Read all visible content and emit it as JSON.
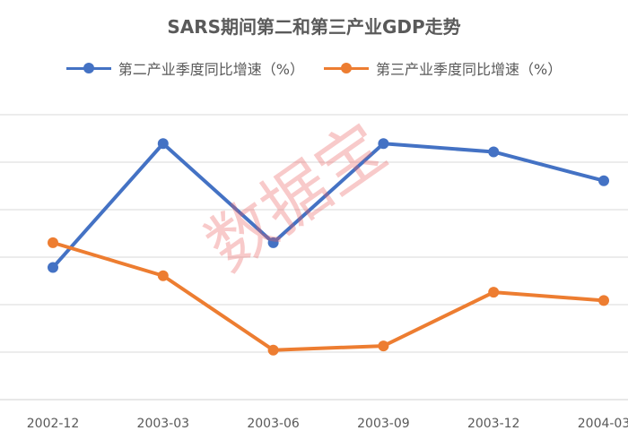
{
  "chart_data": {
    "type": "line",
    "title": "SARS期间第二和第三产业GDP走势",
    "categories": [
      "2002-12",
      "2003-03",
      "2003-06",
      "2003-09",
      "2003-12",
      "2004-03"
    ],
    "series": [
      {
        "name": "第二产业季度同比增速（%）",
        "color": "#4472C4",
        "values": [
          11.2,
          14.2,
          11.8,
          14.2,
          14.0,
          13.3
        ]
      },
      {
        "name": "第三产业季度同比增速（%）",
        "color": "#ED7D31",
        "values": [
          11.8,
          11.0,
          9.2,
          9.3,
          10.6,
          10.4
        ]
      }
    ],
    "ylim": [
      8,
      14.9
    ],
    "grid": true,
    "legend": "top"
  },
  "watermark": "数据宝"
}
